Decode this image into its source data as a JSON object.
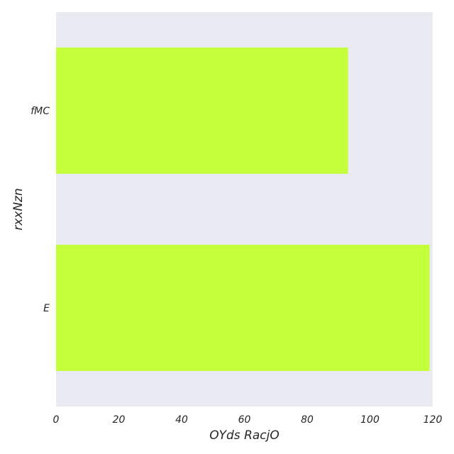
{
  "chart_data": {
    "type": "bar",
    "orientation": "horizontal",
    "title": "",
    "xlabel": "OYds RacjO",
    "ylabel": "rxxNzn",
    "categories": [
      "fMC",
      "E"
    ],
    "values": [
      93,
      119
    ],
    "xlim": [
      0,
      120
    ],
    "xticks": [
      0,
      20,
      40,
      60,
      80,
      100,
      120
    ],
    "grid": false,
    "legend": "none",
    "colors": {
      "bar": "#c3ff3a",
      "plot_background": "#eaeaf2",
      "text": "#262626"
    }
  }
}
